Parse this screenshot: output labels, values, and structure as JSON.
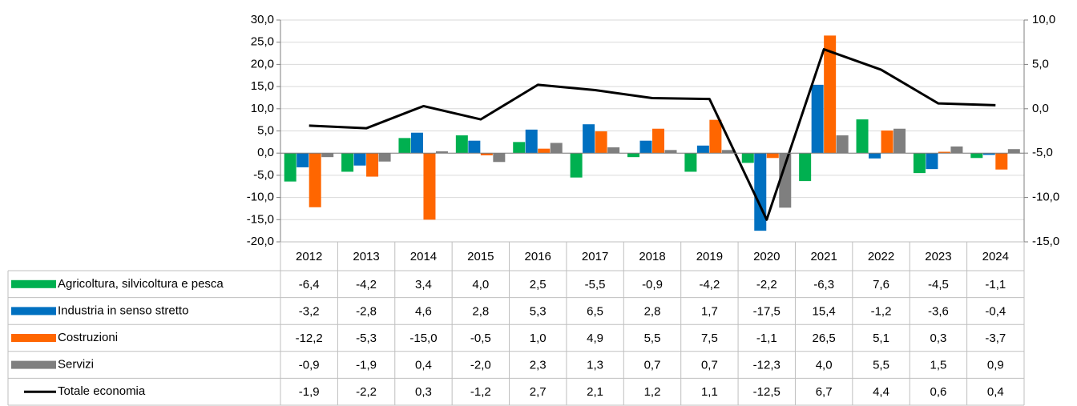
{
  "chart_data": {
    "type": "bar",
    "categories": [
      "2012",
      "2013",
      "2014",
      "2015",
      "2016",
      "2017",
      "2018",
      "2019",
      "2020",
      "2021",
      "2022",
      "2023",
      "2024"
    ],
    "ylim": [
      -20,
      30
    ],
    "yticks": [
      {
        "value": -20,
        "label": "-20,0"
      },
      {
        "value": -15,
        "label": "-15,0"
      },
      {
        "value": -10,
        "label": "-10,0"
      },
      {
        "value": -5,
        "label": "-5,0"
      },
      {
        "value": 0,
        "label": "0,0"
      },
      {
        "value": 5,
        "label": "5,0"
      },
      {
        "value": 10,
        "label": "10,0"
      },
      {
        "value": 15,
        "label": "15,0"
      },
      {
        "value": 20,
        "label": "20,0"
      },
      {
        "value": 25,
        "label": "25,0"
      },
      {
        "value": 30,
        "label": "30,0"
      }
    ],
    "y2lim": [
      -15,
      10
    ],
    "y2ticks": [
      {
        "value": -15,
        "label": "-15,0"
      },
      {
        "value": -10,
        "label": "-10,0"
      },
      {
        "value": -5,
        "label": "-5,0"
      },
      {
        "value": 0,
        "label": "0,0"
      },
      {
        "value": 5,
        "label": "5,0"
      },
      {
        "value": 10,
        "label": "10,0"
      }
    ],
    "grid": true,
    "series": [
      {
        "name": "Agricoltura, silvicoltura e pesca",
        "color": "#00b050",
        "values": [
          -6.4,
          -4.2,
          3.4,
          4.0,
          2.5,
          -5.5,
          -0.9,
          -4.2,
          -2.2,
          -6.3,
          7.6,
          -4.5,
          -1.1
        ],
        "value_labels": [
          "-6,4",
          "-4,2",
          "3,4",
          "4,0",
          "2,5",
          "-5,5",
          "-0,9",
          "-4,2",
          "-2,2",
          "-6,3",
          "7,6",
          "-4,5",
          "-1,1"
        ]
      },
      {
        "name": "Industria in senso stretto",
        "color": "#0070c0",
        "values": [
          -3.2,
          -2.8,
          4.6,
          2.8,
          5.3,
          6.5,
          2.8,
          1.7,
          -17.5,
          15.4,
          -1.2,
          -3.6,
          -0.4
        ],
        "value_labels": [
          "-3,2",
          "-2,8",
          "4,6",
          "2,8",
          "5,3",
          "6,5",
          "2,8",
          "1,7",
          "-17,5",
          "15,4",
          "-1,2",
          "-3,6",
          "-0,4"
        ]
      },
      {
        "name": "Costruzioni",
        "color": "#ff6600",
        "values": [
          -12.2,
          -5.3,
          -15.0,
          -0.5,
          1.0,
          4.9,
          5.5,
          7.5,
          -1.1,
          26.5,
          5.1,
          0.3,
          -3.7
        ],
        "value_labels": [
          "-12,2",
          "-5,3",
          "-15,0",
          "-0,5",
          "1,0",
          "4,9",
          "5,5",
          "7,5",
          "-1,1",
          "26,5",
          "5,1",
          "0,3",
          "-3,7"
        ]
      },
      {
        "name": "Servizi",
        "color": "#7f7f7f",
        "values": [
          -0.9,
          -1.9,
          0.4,
          -2.0,
          2.3,
          1.3,
          0.7,
          0.7,
          -12.3,
          4.0,
          5.5,
          1.5,
          0.9
        ],
        "value_labels": [
          "-0,9",
          "-1,9",
          "0,4",
          "-2,0",
          "2,3",
          "1,3",
          "0,7",
          "0,7",
          "-12,3",
          "4,0",
          "5,5",
          "1,5",
          "0,9"
        ]
      },
      {
        "name": "Totale economia",
        "color": "#000000",
        "type": "line",
        "axis": "y2",
        "values": [
          -1.9,
          -2.2,
          0.3,
          -1.2,
          2.7,
          2.1,
          1.2,
          1.1,
          -12.5,
          6.7,
          4.4,
          0.6,
          0.4
        ],
        "value_labels": [
          "-1,9",
          "-2,2",
          "0,3",
          "-1,2",
          "2,7",
          "2,1",
          "1,2",
          "1,1",
          "-12,5",
          "6,7",
          "4,4",
          "0,6",
          "0,4"
        ]
      }
    ]
  }
}
